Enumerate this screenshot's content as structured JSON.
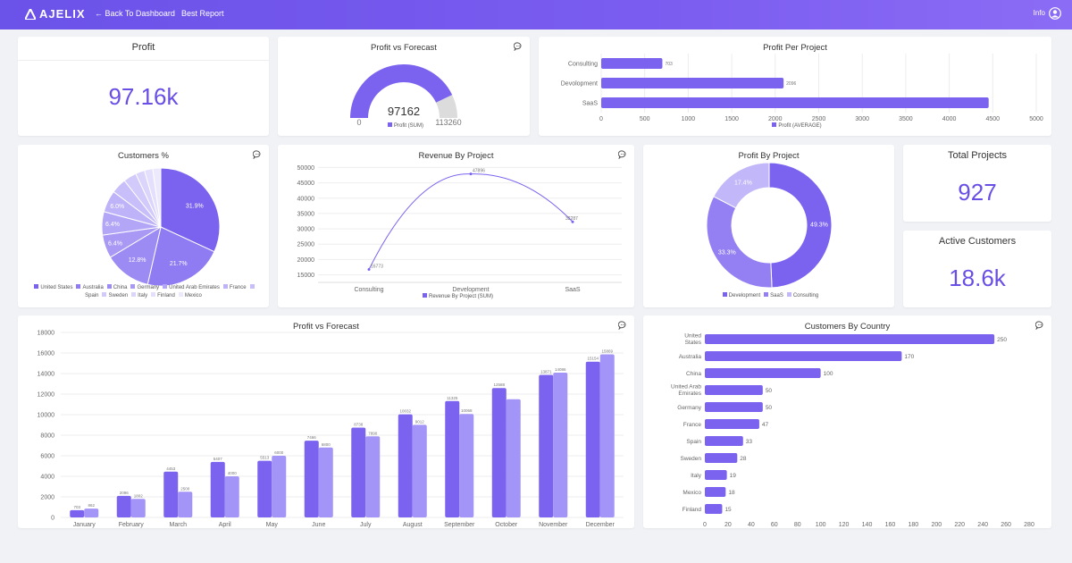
{
  "app": {
    "logo": "AJELIX",
    "back_label": "← Back To Dashboard",
    "report_name": "Best Report",
    "info_label": "Info"
  },
  "colors": {
    "accent": "#6a4fe6",
    "primary": "#7b63f0",
    "secondary": "#a394f7",
    "gauge_rest": "#dcdcdc"
  },
  "icons": {
    "comment": "comment-icon",
    "user": "user-circle-icon",
    "back": "arrow-left-icon"
  },
  "cards": {
    "profit": {
      "title": "Profit",
      "value": "97.16k"
    },
    "total_projects": {
      "title": "Total Projects",
      "value": "927"
    },
    "active_customers": {
      "title": "Active Customers",
      "value": "18.6k"
    }
  },
  "chart_data": [
    {
      "id": "gauge",
      "type": "gauge",
      "title": "Profit vs Forecast",
      "value": 97162,
      "min": 0,
      "max": 113260,
      "value_label": "97162",
      "min_label": "0",
      "max_label": "113260",
      "legend": [
        "Profit (SUM)"
      ]
    },
    {
      "id": "ppp",
      "type": "bar",
      "orientation": "horizontal",
      "title": "Profit Per Project",
      "categories": [
        "Consulting",
        "Devolopment",
        "SaaS"
      ],
      "values": [
        703,
        2096,
        4453
      ],
      "value_labels": [
        "703",
        "2096",
        ""
      ],
      "xticks": [
        "0",
        "500",
        "1000",
        "1500",
        "2000",
        "2500",
        "3000",
        "3500",
        "4000",
        "4500",
        "5000"
      ],
      "xlim": [
        0,
        5000
      ],
      "legend": [
        "Profit (AVERAGE)"
      ]
    },
    {
      "id": "customers_pct",
      "type": "pie",
      "title": "Customers %",
      "categories": [
        "United States",
        "Australia",
        "China",
        "Germany",
        "United Arab Emirates",
        "France",
        "Spain",
        "Sweden",
        "Italy",
        "Finland",
        "Mexico"
      ],
      "values": [
        31.9,
        21.7,
        12.8,
        6.4,
        6.4,
        6.0,
        4.2,
        3.6,
        2.5,
        2.3,
        2.2
      ],
      "slice_labels": [
        "31.9%",
        "21.7%",
        "12.8%",
        "6.4%",
        "6.4%",
        "6.0%",
        "",
        "",
        "",
        "",
        ""
      ],
      "legend": [
        "United States",
        "Australia",
        "China",
        "Germany",
        "United Arab Emirates",
        "France",
        "Spain",
        "Sweden",
        "Italy",
        "Finland",
        "Mexico"
      ]
    },
    {
      "id": "rev_project",
      "type": "line",
      "title": "Revenue By Project",
      "categories": [
        "Consulting",
        "Development",
        "SaaS"
      ],
      "values": [
        16773,
        47896,
        32287
      ],
      "value_labels": [
        "16773",
        "47896",
        "32287"
      ],
      "yticks": [
        "15000",
        "20000",
        "25000",
        "30000",
        "35000",
        "40000",
        "45000",
        "50000"
      ],
      "ylim": [
        14000,
        51000
      ],
      "legend": [
        "Revenue By Project (SUM)"
      ]
    },
    {
      "id": "profit_project",
      "type": "pie",
      "variant": "donut",
      "title": "Profit By Project",
      "categories": [
        "Development",
        "SaaS",
        "Consulting"
      ],
      "values": [
        49.3,
        33.3,
        17.4
      ],
      "slice_labels": [
        "49.3%",
        "33.3%",
        "17.4%"
      ],
      "legend": [
        "Development",
        "SaaS",
        "Consulting"
      ]
    },
    {
      "id": "monthly",
      "type": "bar",
      "title": "Profit vs Forecast",
      "categories": [
        "January",
        "February",
        "March",
        "April",
        "May",
        "June",
        "July",
        "August",
        "September",
        "October",
        "November",
        "December"
      ],
      "series": [
        {
          "values": [
            703,
            2096,
            4453,
            5407,
            5513,
            7466,
            8738,
            10032,
            11325,
            12588,
            13871,
            15154
          ]
        },
        {
          "values": [
            862,
            1802,
            2500,
            4000,
            6000,
            6800,
            7890,
            9012,
            10068,
            11500,
            14086,
            15869
          ]
        }
      ],
      "labels_a": [
        "703",
        "2096",
        "4453",
        "5407",
        "5513",
        "7466",
        "8738",
        "10032",
        "11325",
        "12588",
        "13871",
        "15154"
      ],
      "labels_b": [
        "862",
        "1802",
        "2500",
        "4000",
        "6000",
        "6800",
        "7890",
        "9012",
        "10068",
        "",
        "14086",
        "15869"
      ],
      "yticks": [
        "0",
        "2000",
        "4000",
        "6000",
        "8000",
        "10000",
        "12000",
        "14000",
        "16000",
        "18000"
      ],
      "ylim": [
        0,
        18000
      ]
    },
    {
      "id": "country",
      "type": "bar",
      "orientation": "horizontal",
      "title": "Customers By Country",
      "categories": [
        "United States",
        "Australia",
        "China",
        "United Arab Emirates",
        "Germany",
        "France",
        "Spain",
        "Sweden",
        "Italy",
        "Mexico",
        "Finland"
      ],
      "values": [
        250,
        170,
        100,
        50,
        50,
        47,
        33,
        28,
        19,
        18,
        15
      ],
      "value_labels": [
        "250",
        "170",
        "100",
        "50",
        "50",
        "47",
        "33",
        "28",
        "19",
        "18",
        "15"
      ],
      "xticks": [
        "0",
        "20",
        "40",
        "60",
        "80",
        "100",
        "120",
        "140",
        "160",
        "180",
        "200",
        "220",
        "240",
        "260",
        "280"
      ],
      "xlim": [
        0,
        280
      ]
    }
  ]
}
